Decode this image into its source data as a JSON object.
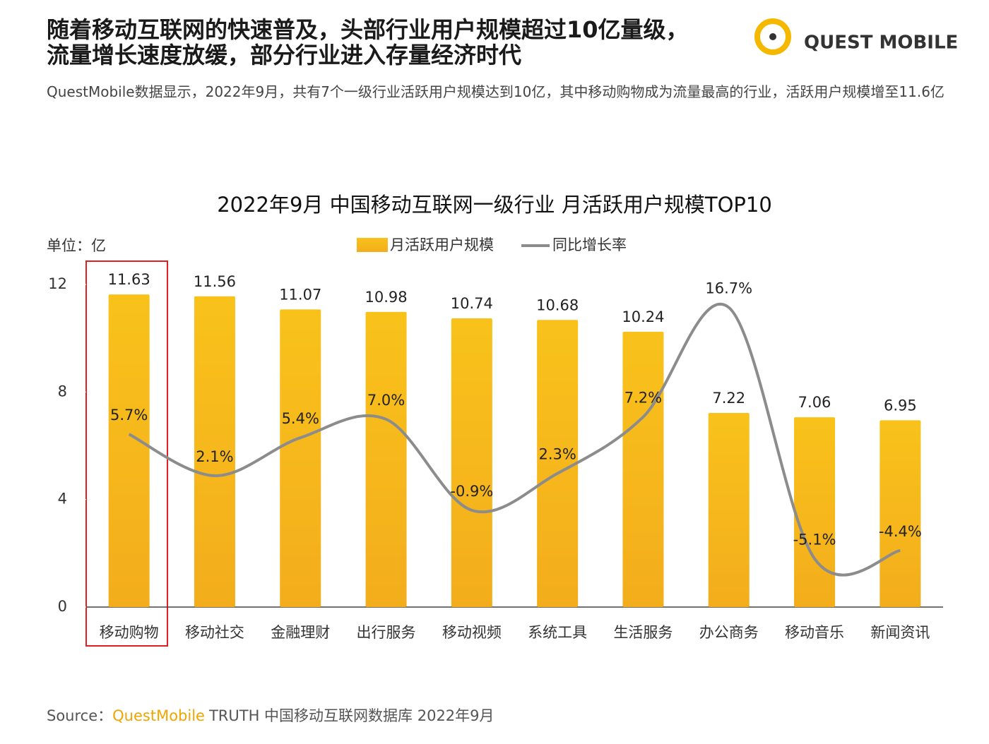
{
  "header": {
    "title": [
      "随着移动互联网的快速普及，头部行业用户规模超过10亿量级，",
      "流量增长速度放缓，部分行业进入存量经济时代"
    ],
    "subtitle": "QuestMobile数据显示，2022年9月，共有7个一级行业活跃用户规模达到10亿，其中移动购物成为流量最高的行业，活跃用户规模增至11.6亿",
    "logo": "QUEST MOBILE"
  },
  "chart_data": {
    "type": "bar-line",
    "title": "2022年9月 中国移动互联网一级行业 月活跃用户规模TOP10",
    "unit_label": "单位：亿",
    "categories": [
      "移动购物",
      "移动社交",
      "金融理财",
      "出行服务",
      "移动视频",
      "系统工具",
      "生活服务",
      "办公商务",
      "移动音乐",
      "新闻资讯"
    ],
    "series": [
      {
        "name": "月活跃用户规模",
        "color": "#f9c21b",
        "type": "bar",
        "values": [
          11.63,
          11.56,
          11.07,
          10.98,
          10.74,
          10.68,
          10.24,
          7.22,
          7.06,
          6.95
        ]
      },
      {
        "name": "同比增长率",
        "color": "#8c8c8c",
        "type": "line",
        "axis": "y2",
        "values": [
          5.7,
          2.1,
          5.4,
          7.0,
          -0.9,
          2.3,
          7.2,
          16.7,
          -5.1,
          -4.4
        ],
        "value_labels": [
          "5.7%",
          "2.1%",
          "5.4%",
          "7.0%",
          "-0.9%",
          "2.3%",
          "7.2%",
          "16.7%",
          "-5.1%",
          "-4.4%"
        ]
      }
    ],
    "ylim": [
      0,
      12
    ],
    "yticks": [
      0,
      4,
      8,
      12
    ],
    "y2lim": [
      -9.3,
      18.7
    ],
    "legend": "top"
  },
  "source": [
    "Source：",
    "QuestMobile",
    "TRUTH 中国移动互联网数据库 2022年9月"
  ]
}
